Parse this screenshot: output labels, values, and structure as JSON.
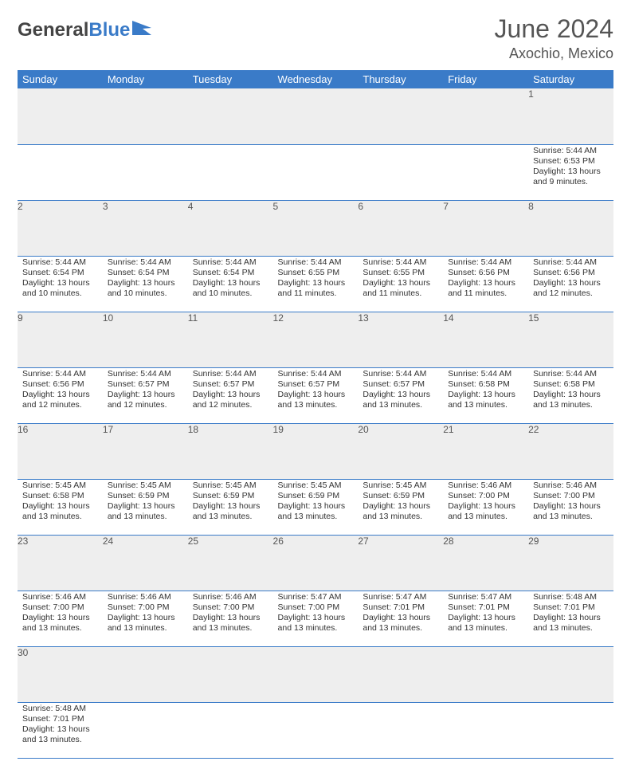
{
  "logo": {
    "textDark": "General",
    "textBlue": "Blue"
  },
  "title": "June 2024",
  "location": "Axochio, Mexico",
  "colors": {
    "headerBg": "#3a7bc8",
    "headerText": "#ffffff",
    "dayRowBg": "#eeeeee",
    "borderColor": "#3a7bc8",
    "textColor": "#333333",
    "titleColor": "#555555"
  },
  "weekdays": [
    "Sunday",
    "Monday",
    "Tuesday",
    "Wednesday",
    "Thursday",
    "Friday",
    "Saturday"
  ],
  "cells": [
    {
      "day": "",
      "sunrise": "",
      "sunset": "",
      "daylight": ""
    },
    {
      "day": "",
      "sunrise": "",
      "sunset": "",
      "daylight": ""
    },
    {
      "day": "",
      "sunrise": "",
      "sunset": "",
      "daylight": ""
    },
    {
      "day": "",
      "sunrise": "",
      "sunset": "",
      "daylight": ""
    },
    {
      "day": "",
      "sunrise": "",
      "sunset": "",
      "daylight": ""
    },
    {
      "day": "",
      "sunrise": "",
      "sunset": "",
      "daylight": ""
    },
    {
      "day": "1",
      "sunrise": "Sunrise: 5:44 AM",
      "sunset": "Sunset: 6:53 PM",
      "daylight": "Daylight: 13 hours and 9 minutes."
    },
    {
      "day": "2",
      "sunrise": "Sunrise: 5:44 AM",
      "sunset": "Sunset: 6:54 PM",
      "daylight": "Daylight: 13 hours and 10 minutes."
    },
    {
      "day": "3",
      "sunrise": "Sunrise: 5:44 AM",
      "sunset": "Sunset: 6:54 PM",
      "daylight": "Daylight: 13 hours and 10 minutes."
    },
    {
      "day": "4",
      "sunrise": "Sunrise: 5:44 AM",
      "sunset": "Sunset: 6:54 PM",
      "daylight": "Daylight: 13 hours and 10 minutes."
    },
    {
      "day": "5",
      "sunrise": "Sunrise: 5:44 AM",
      "sunset": "Sunset: 6:55 PM",
      "daylight": "Daylight: 13 hours and 11 minutes."
    },
    {
      "day": "6",
      "sunrise": "Sunrise: 5:44 AM",
      "sunset": "Sunset: 6:55 PM",
      "daylight": "Daylight: 13 hours and 11 minutes."
    },
    {
      "day": "7",
      "sunrise": "Sunrise: 5:44 AM",
      "sunset": "Sunset: 6:56 PM",
      "daylight": "Daylight: 13 hours and 11 minutes."
    },
    {
      "day": "8",
      "sunrise": "Sunrise: 5:44 AM",
      "sunset": "Sunset: 6:56 PM",
      "daylight": "Daylight: 13 hours and 12 minutes."
    },
    {
      "day": "9",
      "sunrise": "Sunrise: 5:44 AM",
      "sunset": "Sunset: 6:56 PM",
      "daylight": "Daylight: 13 hours and 12 minutes."
    },
    {
      "day": "10",
      "sunrise": "Sunrise: 5:44 AM",
      "sunset": "Sunset: 6:57 PM",
      "daylight": "Daylight: 13 hours and 12 minutes."
    },
    {
      "day": "11",
      "sunrise": "Sunrise: 5:44 AM",
      "sunset": "Sunset: 6:57 PM",
      "daylight": "Daylight: 13 hours and 12 minutes."
    },
    {
      "day": "12",
      "sunrise": "Sunrise: 5:44 AM",
      "sunset": "Sunset: 6:57 PM",
      "daylight": "Daylight: 13 hours and 13 minutes."
    },
    {
      "day": "13",
      "sunrise": "Sunrise: 5:44 AM",
      "sunset": "Sunset: 6:57 PM",
      "daylight": "Daylight: 13 hours and 13 minutes."
    },
    {
      "day": "14",
      "sunrise": "Sunrise: 5:44 AM",
      "sunset": "Sunset: 6:58 PM",
      "daylight": "Daylight: 13 hours and 13 minutes."
    },
    {
      "day": "15",
      "sunrise": "Sunrise: 5:44 AM",
      "sunset": "Sunset: 6:58 PM",
      "daylight": "Daylight: 13 hours and 13 minutes."
    },
    {
      "day": "16",
      "sunrise": "Sunrise: 5:45 AM",
      "sunset": "Sunset: 6:58 PM",
      "daylight": "Daylight: 13 hours and 13 minutes."
    },
    {
      "day": "17",
      "sunrise": "Sunrise: 5:45 AM",
      "sunset": "Sunset: 6:59 PM",
      "daylight": "Daylight: 13 hours and 13 minutes."
    },
    {
      "day": "18",
      "sunrise": "Sunrise: 5:45 AM",
      "sunset": "Sunset: 6:59 PM",
      "daylight": "Daylight: 13 hours and 13 minutes."
    },
    {
      "day": "19",
      "sunrise": "Sunrise: 5:45 AM",
      "sunset": "Sunset: 6:59 PM",
      "daylight": "Daylight: 13 hours and 13 minutes."
    },
    {
      "day": "20",
      "sunrise": "Sunrise: 5:45 AM",
      "sunset": "Sunset: 6:59 PM",
      "daylight": "Daylight: 13 hours and 13 minutes."
    },
    {
      "day": "21",
      "sunrise": "Sunrise: 5:46 AM",
      "sunset": "Sunset: 7:00 PM",
      "daylight": "Daylight: 13 hours and 13 minutes."
    },
    {
      "day": "22",
      "sunrise": "Sunrise: 5:46 AM",
      "sunset": "Sunset: 7:00 PM",
      "daylight": "Daylight: 13 hours and 13 minutes."
    },
    {
      "day": "23",
      "sunrise": "Sunrise: 5:46 AM",
      "sunset": "Sunset: 7:00 PM",
      "daylight": "Daylight: 13 hours and 13 minutes."
    },
    {
      "day": "24",
      "sunrise": "Sunrise: 5:46 AM",
      "sunset": "Sunset: 7:00 PM",
      "daylight": "Daylight: 13 hours and 13 minutes."
    },
    {
      "day": "25",
      "sunrise": "Sunrise: 5:46 AM",
      "sunset": "Sunset: 7:00 PM",
      "daylight": "Daylight: 13 hours and 13 minutes."
    },
    {
      "day": "26",
      "sunrise": "Sunrise: 5:47 AM",
      "sunset": "Sunset: 7:00 PM",
      "daylight": "Daylight: 13 hours and 13 minutes."
    },
    {
      "day": "27",
      "sunrise": "Sunrise: 5:47 AM",
      "sunset": "Sunset: 7:01 PM",
      "daylight": "Daylight: 13 hours and 13 minutes."
    },
    {
      "day": "28",
      "sunrise": "Sunrise: 5:47 AM",
      "sunset": "Sunset: 7:01 PM",
      "daylight": "Daylight: 13 hours and 13 minutes."
    },
    {
      "day": "29",
      "sunrise": "Sunrise: 5:48 AM",
      "sunset": "Sunset: 7:01 PM",
      "daylight": "Daylight: 13 hours and 13 minutes."
    },
    {
      "day": "30",
      "sunrise": "Sunrise: 5:48 AM",
      "sunset": "Sunset: 7:01 PM",
      "daylight": "Daylight: 13 hours and 13 minutes."
    },
    {
      "day": "",
      "sunrise": "",
      "sunset": "",
      "daylight": ""
    },
    {
      "day": "",
      "sunrise": "",
      "sunset": "",
      "daylight": ""
    },
    {
      "day": "",
      "sunrise": "",
      "sunset": "",
      "daylight": ""
    },
    {
      "day": "",
      "sunrise": "",
      "sunset": "",
      "daylight": ""
    },
    {
      "day": "",
      "sunrise": "",
      "sunset": "",
      "daylight": ""
    },
    {
      "day": "",
      "sunrise": "",
      "sunset": "",
      "daylight": ""
    }
  ]
}
